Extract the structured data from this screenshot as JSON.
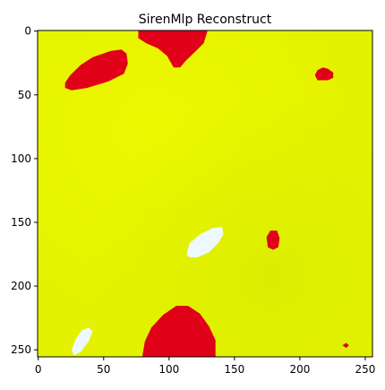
{
  "chart_data": {
    "type": "heatmap",
    "title": "SirenMlp Reconstruct",
    "xlabel": "",
    "ylabel": "",
    "xlim": [
      0,
      256
    ],
    "ylim": [
      256,
      0
    ],
    "x_ticks": [
      0,
      50,
      100,
      150,
      200,
      250
    ],
    "y_ticks": [
      0,
      50,
      100,
      150,
      200,
      250
    ],
    "grid": false,
    "colors": {
      "background": "#e4f200",
      "background_light": "#ecf800",
      "background_dark": "#dcee00",
      "blob_red": "#e00018",
      "blob_white": "#eef8ff"
    },
    "regions": [
      {
        "name": "red-blob-top-center",
        "color": "red",
        "points": [
          [
            77,
            0
          ],
          [
            130,
            0
          ],
          [
            127,
            10
          ],
          [
            119,
            18
          ],
          [
            113,
            24
          ],
          [
            109,
            29
          ],
          [
            104,
            29
          ],
          [
            99,
            20
          ],
          [
            92,
            14
          ],
          [
            83,
            10
          ],
          [
            77,
            6
          ]
        ]
      },
      {
        "name": "red-blob-upper-left",
        "color": "red",
        "points": [
          [
            21,
            41
          ],
          [
            25,
            35
          ],
          [
            33,
            27
          ],
          [
            42,
            21
          ],
          [
            56,
            16
          ],
          [
            64,
            15
          ],
          [
            68,
            18
          ],
          [
            69,
            26
          ],
          [
            66,
            34
          ],
          [
            54,
            40
          ],
          [
            38,
            45
          ],
          [
            26,
            47
          ],
          [
            21,
            45
          ]
        ]
      },
      {
        "name": "red-blob-upper-right",
        "color": "red",
        "points": [
          [
            212,
            35
          ],
          [
            214,
            31
          ],
          [
            218,
            29
          ],
          [
            222,
            30
          ],
          [
            226,
            33
          ],
          [
            226,
            37
          ],
          [
            222,
            39
          ],
          [
            214,
            39
          ]
        ]
      },
      {
        "name": "red-blob-mid-right",
        "color": "red",
        "points": [
          [
            175,
            162
          ],
          [
            178,
            157
          ],
          [
            183,
            157
          ],
          [
            185,
            163
          ],
          [
            184,
            170
          ],
          [
            180,
            172
          ],
          [
            176,
            170
          ]
        ]
      },
      {
        "name": "red-blob-bottom-center",
        "color": "red",
        "points": [
          [
            80,
            256
          ],
          [
            82,
            244
          ],
          [
            87,
            233
          ],
          [
            96,
            223
          ],
          [
            106,
            216
          ],
          [
            115,
            216
          ],
          [
            124,
            222
          ],
          [
            131,
            232
          ],
          [
            136,
            243
          ],
          [
            136,
            256
          ]
        ]
      },
      {
        "name": "red-dot-bottom-right",
        "color": "red",
        "points": [
          [
            233,
            247
          ],
          [
            236,
            245
          ],
          [
            238,
            247
          ],
          [
            236,
            249
          ]
        ]
      },
      {
        "name": "white-blob-center",
        "color": "white",
        "points": [
          [
            114,
            176
          ],
          [
            116,
            167
          ],
          [
            124,
            160
          ],
          [
            134,
            155
          ],
          [
            141,
            154
          ],
          [
            142,
            160
          ],
          [
            138,
            167
          ],
          [
            131,
            174
          ],
          [
            122,
            178
          ],
          [
            116,
            178
          ]
        ]
      },
      {
        "name": "white-blob-bottom-left",
        "color": "white",
        "points": [
          [
            26,
            251
          ],
          [
            29,
            242
          ],
          [
            34,
            235
          ],
          [
            39,
            233
          ],
          [
            42,
            236
          ],
          [
            39,
            244
          ],
          [
            33,
            252
          ],
          [
            28,
            255
          ]
        ]
      }
    ]
  }
}
